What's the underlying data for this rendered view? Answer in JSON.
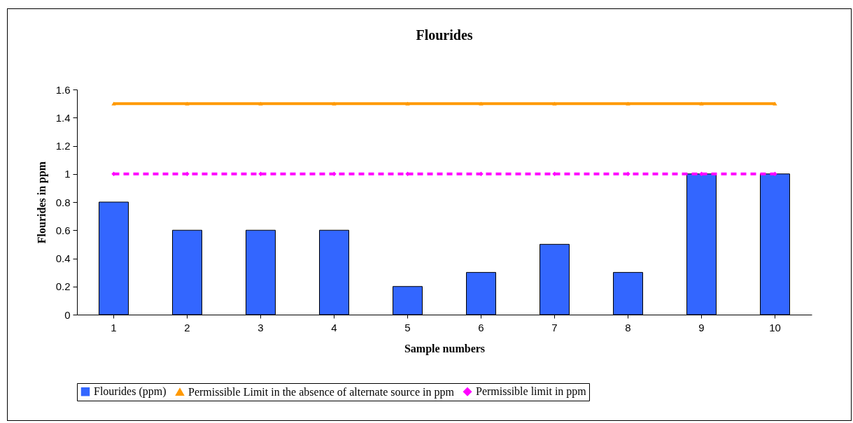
{
  "chart_data": {
    "type": "bar",
    "title": "Flourides",
    "xlabel": "Sample numbers",
    "ylabel": "Flourides in ppm",
    "categories": [
      "1",
      "2",
      "3",
      "4",
      "5",
      "6",
      "7",
      "8",
      "9",
      "10"
    ],
    "series": [
      {
        "name": "Flourides (ppm)",
        "color": "#3366ff",
        "values": [
          0.8,
          0.6,
          0.6,
          0.6,
          0.2,
          0.3,
          0.5,
          0.3,
          1,
          1
        ]
      },
      {
        "name": "Permissible Limit in the absence of alternate source in ppm",
        "type": "line",
        "color": "#ff9900",
        "marker": "triangle",
        "line_style": "solid",
        "values": [
          1.5,
          1.5,
          1.5,
          1.5,
          1.5,
          1.5,
          1.5,
          1.5,
          1.5,
          1.5
        ]
      },
      {
        "name": "Permissible limit in ppm",
        "type": "line",
        "color": "#ff00ff",
        "marker": "diamond",
        "line_style": "dashed",
        "values": [
          1,
          1,
          1,
          1,
          1,
          1,
          1,
          1,
          1,
          1
        ]
      }
    ],
    "ylim": [
      0,
      1.6
    ],
    "yticks": [
      0,
      0.2,
      0.4,
      0.6,
      0.8,
      1,
      1.2,
      1.4,
      1.6
    ],
    "grid": false,
    "legend": "bottom"
  }
}
